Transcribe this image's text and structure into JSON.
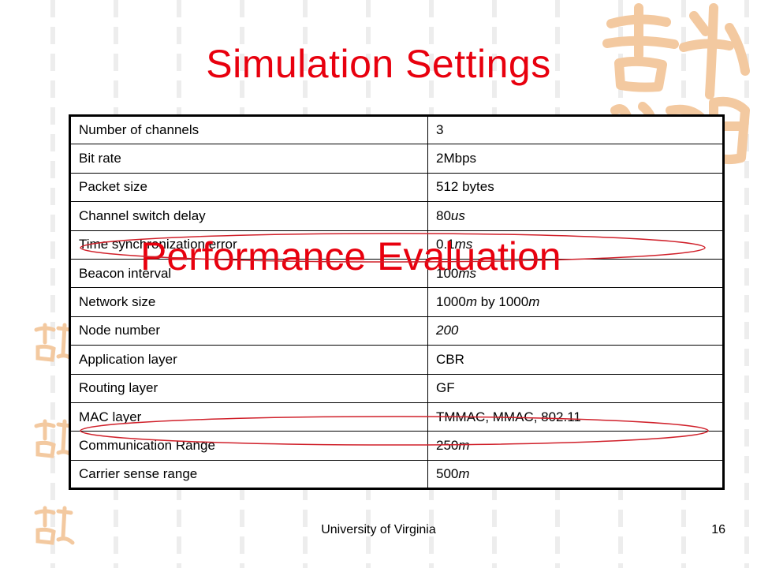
{
  "slide": {
    "title": "Simulation Settings",
    "overlay_title": "Performance Evaluation",
    "footer": "University of Virginia",
    "page_number": "16"
  },
  "table": {
    "rows": [
      {
        "param": "Number of channels",
        "value": "3"
      },
      {
        "param": "Bit rate",
        "value": "2Mbps"
      },
      {
        "param": "Packet size",
        "value": "512 bytes"
      },
      {
        "param": "Channel switch delay",
        "value": "80",
        "value_italic": "us"
      },
      {
        "param": "Time synchronization error",
        "value": "0.1",
        "value_italic": "ms"
      },
      {
        "param": "Beacon interval",
        "value": "100",
        "value_italic": "ms"
      },
      {
        "param": "Network size",
        "value": "1000",
        "value_italic": "m",
        "value_mid": " by 1000",
        "value_italic2": "m"
      },
      {
        "param": "Node number",
        "value_italic_only": "200"
      },
      {
        "param": "Application layer",
        "value": "CBR"
      },
      {
        "param": "Routing layer",
        "value": "GF"
      },
      {
        "param": "MAC layer",
        "value": "TMMAC, MMAC, 802.11"
      },
      {
        "param": "Communication  Range",
        "value": "250",
        "value_italic": "m"
      },
      {
        "param": "Carrier sense range",
        "value": "500",
        "value_italic": "m"
      }
    ]
  },
  "colors": {
    "title": "#e8000e",
    "ellipse": "#d0202a",
    "decoration": "#f3c9a0"
  },
  "icons": {
    "decoration_large": "calligraphy-seal-icon",
    "decoration_small": "calligraphy-seal-small-icon"
  }
}
